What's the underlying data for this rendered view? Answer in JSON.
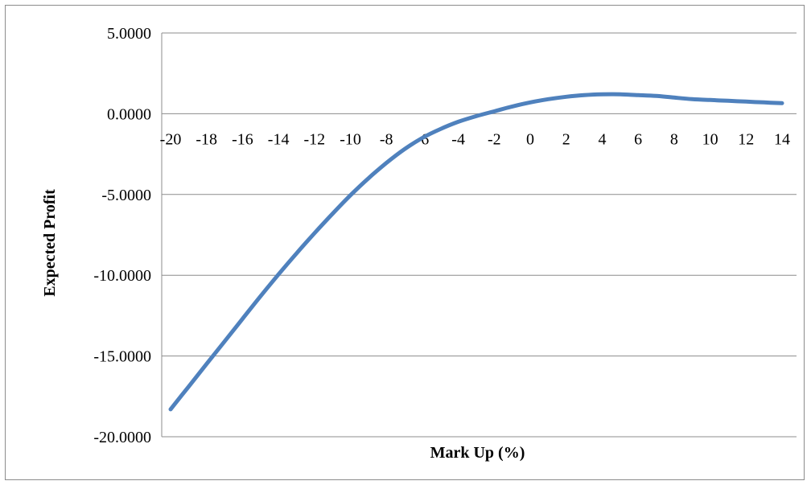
{
  "chart_data": {
    "type": "line",
    "title": "",
    "xlabel": "Mark Up (%)",
    "ylabel": "Expected Profit",
    "x_ticks": [
      "-20",
      "-18",
      "-16",
      "-14",
      "-12",
      "-10",
      "-8",
      "-6",
      "-4",
      "-2",
      "0",
      "2",
      "4",
      "6",
      "8",
      "10",
      "12",
      "14"
    ],
    "y_ticks": [
      "5.0000",
      "0.0000",
      "-5.0000",
      "-10.0000",
      "-15.0000",
      "-20.0000"
    ],
    "xlim": [
      -20,
      14
    ],
    "ylim": [
      -20,
      5
    ],
    "grid": true,
    "legend": "none",
    "series": [
      {
        "color": "#4f81bd",
        "x": [
          -20,
          -19,
          -18,
          -17,
          -16,
          -15,
          -14,
          -13,
          -12,
          -11,
          -10,
          -9,
          -8,
          -7,
          -6,
          -5,
          -4,
          -3,
          -2,
          -1,
          0,
          1,
          2,
          3,
          4,
          5,
          6,
          7,
          8,
          9,
          10,
          11,
          12,
          13,
          14
        ],
        "values": [
          -18.3,
          -16.9,
          -15.5,
          -14.1,
          -12.7,
          -11.3,
          -9.95,
          -8.65,
          -7.4,
          -6.2,
          -5.05,
          -4.0,
          -3.05,
          -2.2,
          -1.5,
          -0.95,
          -0.5,
          -0.15,
          0.15,
          0.45,
          0.7,
          0.9,
          1.05,
          1.15,
          1.2,
          1.2,
          1.15,
          1.1,
          1.0,
          0.9,
          0.85,
          0.8,
          0.75,
          0.7,
          0.65
        ]
      }
    ]
  }
}
